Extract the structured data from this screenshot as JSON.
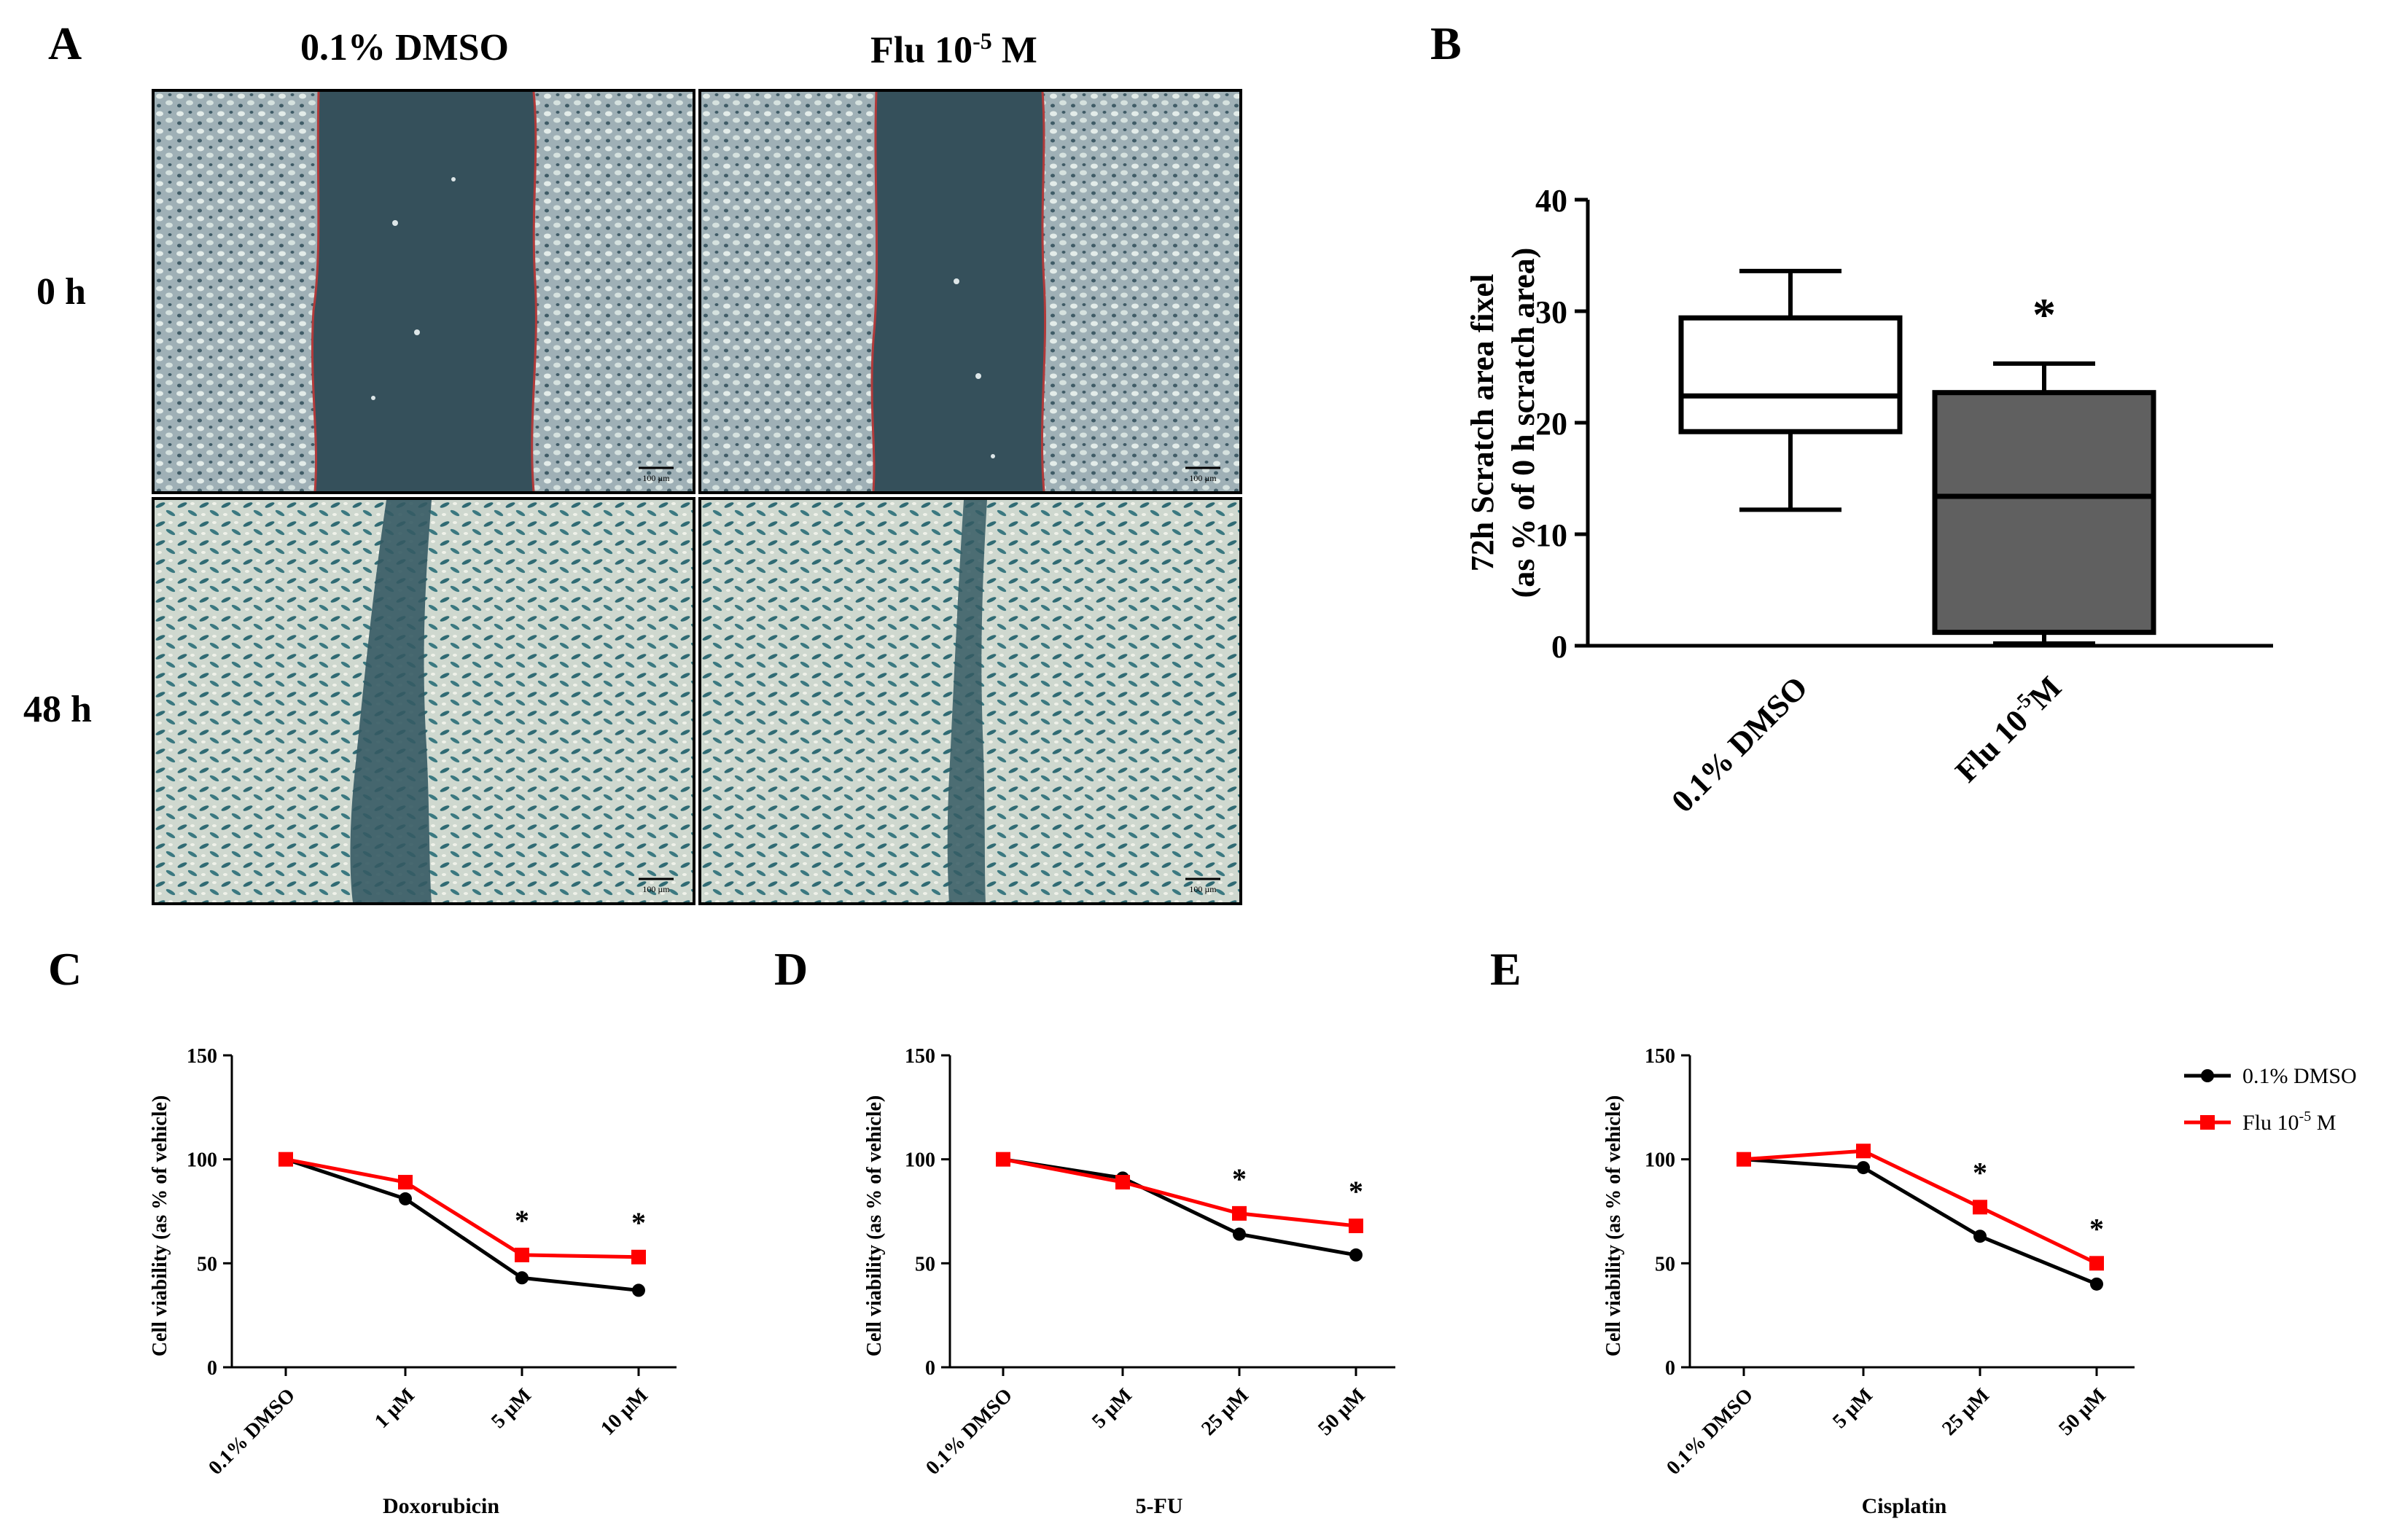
{
  "panel_labels": {
    "A": "A",
    "B": "B",
    "C": "C",
    "D": "D",
    "E": "E"
  },
  "panelA": {
    "col_headers": [
      "0.1% DMSO",
      "Flu 10",
      "-5",
      " M"
    ],
    "row_labels": [
      "0 h",
      "48 h"
    ],
    "scale_bar_text": "100 µm",
    "images": [
      "dmso-0h",
      "flu-0h",
      "dmso-48h",
      "flu-48h"
    ]
  },
  "colors": {
    "dmso": "#000000",
    "flu": "#ff0000",
    "box_flu_fill": "#606060",
    "cell_bg": "#dcdfd6",
    "scratch": "#36515c"
  },
  "chart_data": [
    {
      "id": "B",
      "type": "box",
      "ylabel_line1": "72h Scratch area fixel",
      "ylabel_line2": "(as % of 0 h scratch area)",
      "ylim": [
        0,
        40
      ],
      "yticks": [
        "0",
        "10",
        "20",
        "30",
        "40"
      ],
      "categories": [
        "0.1% DMSO",
        "Flu 10"
      ],
      "category_sup": [
        "",
        "-5"
      ],
      "category_suffix": [
        "",
        "M"
      ],
      "boxes": [
        {
          "min": 12.2,
          "q1": 19.2,
          "median": 22.4,
          "q3": 29.4,
          "max": 33.6,
          "fill": "#ffffff"
        },
        {
          "min": 0.2,
          "q1": 1.2,
          "median": 13.4,
          "q3": 22.7,
          "max": 25.3,
          "fill": "#606060"
        }
      ],
      "annotations": [
        "",
        "*"
      ]
    },
    {
      "id": "C",
      "type": "line",
      "ylabel": "Cell viability (as % of vehicle)",
      "xlabel": "Doxorubicin",
      "ylim": [
        0,
        150
      ],
      "yticks": [
        "0",
        "50",
        "100",
        "150"
      ],
      "categories": [
        "0.1% DMSO",
        "1 µM",
        "5 µM",
        "10 µM"
      ],
      "series": [
        {
          "name": "0.1% DMSO",
          "values": [
            100,
            81,
            43,
            37
          ]
        },
        {
          "name": "Flu 10-5 M",
          "values": [
            100,
            89,
            54,
            53
          ]
        }
      ],
      "stars": [
        "",
        "",
        "*",
        "*"
      ]
    },
    {
      "id": "D",
      "type": "line",
      "ylabel": "Cell viability (as % of vehicle)",
      "xlabel": "5-FU",
      "ylim": [
        0,
        150
      ],
      "yticks": [
        "0",
        "50",
        "100",
        "150"
      ],
      "categories": [
        "0.1% DMSO",
        "5 µM",
        "25 µM",
        "50 µM"
      ],
      "series": [
        {
          "name": "0.1% DMSO",
          "values": [
            100,
            91,
            64,
            54
          ]
        },
        {
          "name": "Flu 10-5 M",
          "values": [
            100,
            89,
            74,
            68
          ]
        }
      ],
      "stars": [
        "",
        "",
        "*",
        "*"
      ]
    },
    {
      "id": "E",
      "type": "line",
      "ylabel": "Cell viability (as % of vehicle)",
      "xlabel": "Cisplatin",
      "ylim": [
        0,
        150
      ],
      "yticks": [
        "0",
        "50",
        "100",
        "150"
      ],
      "categories": [
        "0.1% DMSO",
        "5 µM",
        "25 µM",
        "50 µM"
      ],
      "series": [
        {
          "name": "0.1% DMSO",
          "values": [
            100,
            96,
            63,
            40
          ]
        },
        {
          "name": "Flu 10-5 M",
          "values": [
            100,
            104,
            77,
            50
          ]
        }
      ],
      "stars": [
        "",
        "",
        "*",
        "*"
      ]
    }
  ],
  "legend": {
    "items": [
      {
        "label": "0.1% DMSO",
        "sup": "",
        "suffix": ""
      },
      {
        "label": "Flu 10",
        "sup": "-5",
        "suffix": " M"
      }
    ]
  }
}
